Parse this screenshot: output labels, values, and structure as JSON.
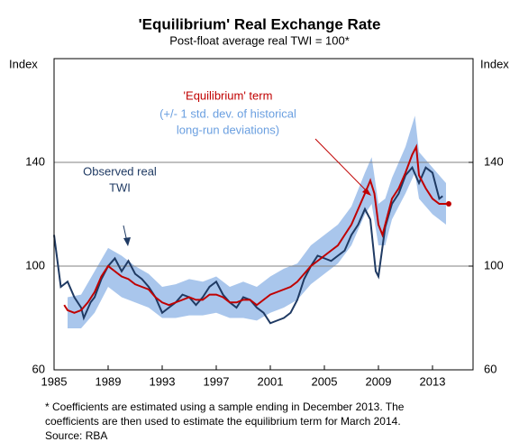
{
  "chart_data": {
    "type": "line",
    "title": "'Equilibrium' Real Exchange Rate",
    "subtitle": "Post-float average real TWI = 100*",
    "ylabel": "Index",
    "y2label": "Index",
    "xlim": [
      1985,
      2016
    ],
    "xticks": [
      1985,
      1989,
      1993,
      1997,
      2001,
      2005,
      2009,
      2013
    ],
    "ylim": [
      60,
      180
    ],
    "yticks": [
      60,
      100,
      140
    ],
    "y2lim": [
      60,
      180
    ],
    "y2ticks": [
      60,
      100,
      140
    ],
    "grid": true,
    "series": [
      {
        "name": "Observed real TWI",
        "color": "#1f3a63",
        "x": [
          1985.0,
          1985.5,
          1986,
          1986.5,
          1987,
          1987.2,
          1987.7,
          1988,
          1988.5,
          1989,
          1989.5,
          1990,
          1990.5,
          1991,
          1991.5,
          1992,
          1992.5,
          1993,
          1993.5,
          1994,
          1994.5,
          1995,
          1995.5,
          1996,
          1996.5,
          1997,
          1997.5,
          1998,
          1998.5,
          1999,
          1999.5,
          2000,
          2000.5,
          2001,
          2001.5,
          2002,
          2002.5,
          2003,
          2003.5,
          2004,
          2004.5,
          2005,
          2005.5,
          2006,
          2006.5,
          2007,
          2007.5,
          2008,
          2008.4,
          2008.8,
          2009,
          2009.5,
          2010,
          2010.5,
          2011,
          2011.5,
          2012,
          2012.5,
          2013,
          2013.5,
          2013.75
        ],
        "values": [
          112,
          92,
          94,
          88,
          84,
          80,
          86,
          88,
          95,
          100,
          103,
          98,
          102,
          97,
          95,
          92,
          88,
          82,
          84,
          86,
          89,
          88,
          85,
          88,
          92,
          94,
          89,
          86,
          84,
          88,
          87,
          84,
          82,
          78,
          79,
          80,
          82,
          87,
          95,
          100,
          104,
          103,
          102,
          104,
          106,
          112,
          116,
          122,
          118,
          98,
          96,
          115,
          124,
          128,
          135,
          138,
          132,
          138,
          136,
          126,
          127
        ]
      },
      {
        "name": "'Equilibrium' term",
        "color": "#c00000",
        "x": [
          1985.75,
          1986,
          1986.5,
          1987,
          1987.5,
          1988,
          1988.5,
          1989,
          1989.5,
          1990,
          1990.5,
          1991,
          1991.5,
          1992,
          1992.5,
          1993,
          1993.5,
          1994,
          1994.5,
          1995,
          1995.5,
          1996,
          1996.5,
          1997,
          1997.5,
          1998,
          1998.5,
          1999,
          1999.5,
          2000,
          2000.5,
          2001,
          2001.5,
          2002,
          2002.5,
          2003,
          2003.5,
          2004,
          2004.5,
          2005,
          2005.5,
          2006,
          2006.5,
          2007,
          2007.5,
          2008,
          2008.4,
          2008.7,
          2009,
          2009.3,
          2009.6,
          2010,
          2010.5,
          2011,
          2011.5,
          2011.8,
          2012,
          2012.5,
          2013,
          2013.5,
          2014.2
        ],
        "values": [
          85,
          83,
          82,
          83,
          86,
          90,
          96,
          100,
          98,
          96,
          95,
          93,
          92,
          91,
          88,
          86,
          85,
          86,
          87,
          88,
          87,
          87,
          89,
          89,
          88,
          86,
          86,
          87,
          87,
          85,
          87,
          89,
          90,
          91,
          92,
          94,
          97,
          100,
          102,
          104,
          106,
          108,
          112,
          116,
          122,
          128,
          133,
          128,
          116,
          112,
          118,
          126,
          130,
          136,
          143,
          146,
          135,
          130,
          126,
          124,
          124
        ]
      }
    ],
    "band": {
      "name": "(+/- 1 std. dev. of historical long-run deviations)",
      "color": "#a9c6ec",
      "x": [
        1986,
        1987,
        1988,
        1989,
        1990,
        1991,
        1992,
        1993,
        1994,
        1995,
        1996,
        1997,
        1998,
        1999,
        2000,
        2001,
        2002,
        2003,
        2004,
        2005,
        2006,
        2007,
        2008,
        2008.5,
        2009,
        2009.5,
        2010,
        2011,
        2011.7,
        2012,
        2013,
        2014
      ],
      "lower": [
        76,
        76,
        82,
        92,
        88,
        86,
        84,
        80,
        80,
        81,
        81,
        82,
        80,
        80,
        79,
        82,
        84,
        87,
        93,
        97,
        101,
        108,
        120,
        124,
        108,
        108,
        118,
        128,
        136,
        126,
        120,
        116
      ],
      "upper": [
        88,
        89,
        98,
        107,
        104,
        100,
        97,
        92,
        93,
        95,
        94,
        96,
        92,
        94,
        92,
        96,
        99,
        101,
        108,
        112,
        116,
        123,
        136,
        142,
        124,
        126,
        134,
        146,
        158,
        144,
        138,
        132
      ]
    },
    "annotations": [
      {
        "lines": [
          "'Equilibrium' term"
        ],
        "color": "#c00000"
      },
      {
        "lines": [
          "(+/- 1 std. dev. of historical",
          "long-run deviations)"
        ],
        "color": "#6a9fe0"
      },
      {
        "lines": [
          "Observed real",
          "TWI"
        ],
        "color": "#1f3a63"
      }
    ],
    "footnotes": [
      "* Coefficients are estimated using a sample ending in December 2013. The",
      "coefficients are then used to estimate the equilibrium term for March 2014.",
      "Source: RBA"
    ]
  }
}
